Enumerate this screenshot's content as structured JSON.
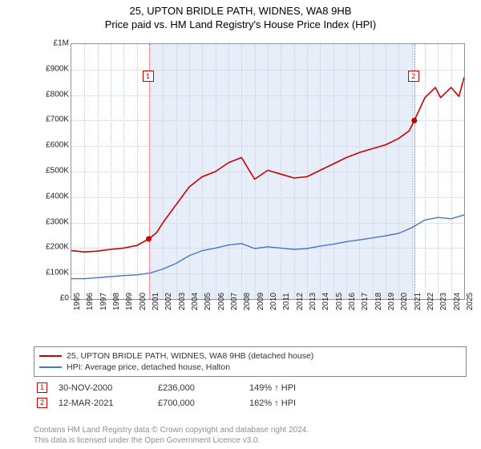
{
  "title": {
    "line1": "25, UPTON BRIDLE PATH, WIDNES, WA8 9HB",
    "line2": "Price paid vs. HM Land Registry's House Price Index (HPI)"
  },
  "chart": {
    "type": "line",
    "background_color": "#ffffff",
    "grid_color": "#c8cdd6",
    "border_color": "#8a94a6",
    "x": {
      "min": 1995,
      "max": 2025,
      "ticks": [
        1995,
        1996,
        1997,
        1998,
        1999,
        2000,
        2001,
        2002,
        2003,
        2004,
        2005,
        2006,
        2007,
        2008,
        2009,
        2010,
        2011,
        2012,
        2013,
        2014,
        2015,
        2016,
        2017,
        2018,
        2019,
        2020,
        2021,
        2022,
        2023,
        2024,
        2025
      ],
      "label_fontsize": 10
    },
    "y": {
      "min": 0,
      "max": 1000000,
      "tick_step": 100000,
      "tick_labels": [
        "£0",
        "£100K",
        "£200K",
        "£300K",
        "£400K",
        "£500K",
        "£600K",
        "£700K",
        "£800K",
        "£900K",
        "£1M"
      ],
      "label_fontsize": 10
    },
    "shade_ranges": [
      {
        "x0": 2000.91,
        "x1": 2021.19,
        "color": "#e8eef9"
      }
    ],
    "series": [
      {
        "name": "property",
        "label": "25, UPTON BRIDLE PATH, WIDNES, WA8 9HB (detached house)",
        "color": "#cc0000",
        "line_width": 1.6,
        "points": [
          [
            1995,
            190000
          ],
          [
            1996,
            185000
          ],
          [
            1997,
            188000
          ],
          [
            1998,
            195000
          ],
          [
            1999,
            200000
          ],
          [
            2000,
            210000
          ],
          [
            2000.91,
            236000
          ],
          [
            2001.5,
            260000
          ],
          [
            2002,
            300000
          ],
          [
            2003,
            370000
          ],
          [
            2004,
            440000
          ],
          [
            2005,
            480000
          ],
          [
            2006,
            500000
          ],
          [
            2007,
            535000
          ],
          [
            2008,
            555000
          ],
          [
            2008.7,
            495000
          ],
          [
            2009,
            470000
          ],
          [
            2010,
            505000
          ],
          [
            2011,
            490000
          ],
          [
            2012,
            475000
          ],
          [
            2013,
            480000
          ],
          [
            2014,
            505000
          ],
          [
            2015,
            530000
          ],
          [
            2016,
            555000
          ],
          [
            2017,
            575000
          ],
          [
            2018,
            590000
          ],
          [
            2019,
            605000
          ],
          [
            2020,
            630000
          ],
          [
            2020.8,
            660000
          ],
          [
            2021.19,
            700000
          ],
          [
            2022,
            790000
          ],
          [
            2022.8,
            830000
          ],
          [
            2023.2,
            790000
          ],
          [
            2024,
            830000
          ],
          [
            2024.6,
            795000
          ],
          [
            2025,
            870000
          ]
        ]
      },
      {
        "name": "hpi",
        "label": "HPI: Average price, detached house, Halton",
        "color": "#4a74c9",
        "line_width": 1.4,
        "points": [
          [
            1995,
            80000
          ],
          [
            1996,
            80000
          ],
          [
            1997,
            84000
          ],
          [
            1998,
            88000
          ],
          [
            1999,
            92000
          ],
          [
            2000,
            95000
          ],
          [
            2001,
            102000
          ],
          [
            2002,
            118000
          ],
          [
            2003,
            140000
          ],
          [
            2004,
            170000
          ],
          [
            2005,
            190000
          ],
          [
            2006,
            200000
          ],
          [
            2007,
            212000
          ],
          [
            2008,
            218000
          ],
          [
            2009,
            198000
          ],
          [
            2010,
            205000
          ],
          [
            2011,
            200000
          ],
          [
            2012,
            195000
          ],
          [
            2013,
            198000
          ],
          [
            2014,
            208000
          ],
          [
            2015,
            215000
          ],
          [
            2016,
            225000
          ],
          [
            2017,
            232000
          ],
          [
            2018,
            240000
          ],
          [
            2019,
            248000
          ],
          [
            2020,
            258000
          ],
          [
            2021,
            280000
          ],
          [
            2022,
            310000
          ],
          [
            2023,
            320000
          ],
          [
            2024,
            315000
          ],
          [
            2025,
            330000
          ]
        ]
      }
    ],
    "markers": [
      {
        "n": "1",
        "x": 2000.91,
        "y": 236000,
        "label_y": 870000
      },
      {
        "n": "2",
        "x": 2021.19,
        "y": 700000,
        "label_y": 870000
      }
    ],
    "marker_dot_color": "#cc0000",
    "marker_border_color": "#cc0000"
  },
  "legend": {
    "series": [
      {
        "color": "#cc0000",
        "text": "25, UPTON BRIDLE PATH, WIDNES, WA8 9HB (detached house)"
      },
      {
        "color": "#4a74c9",
        "text": "HPI: Average price, detached house, Halton"
      }
    ]
  },
  "sales": [
    {
      "n": "1",
      "date": "30-NOV-2000",
      "price": "£236,000",
      "pct": "149% ↑ HPI"
    },
    {
      "n": "2",
      "date": "12-MAR-2021",
      "price": "£700,000",
      "pct": "162% ↑ HPI"
    }
  ],
  "footer": {
    "line1": "Contains HM Land Registry data © Crown copyright and database right 2024.",
    "line2": "This data is licensed under the Open Government Licence v3.0."
  }
}
